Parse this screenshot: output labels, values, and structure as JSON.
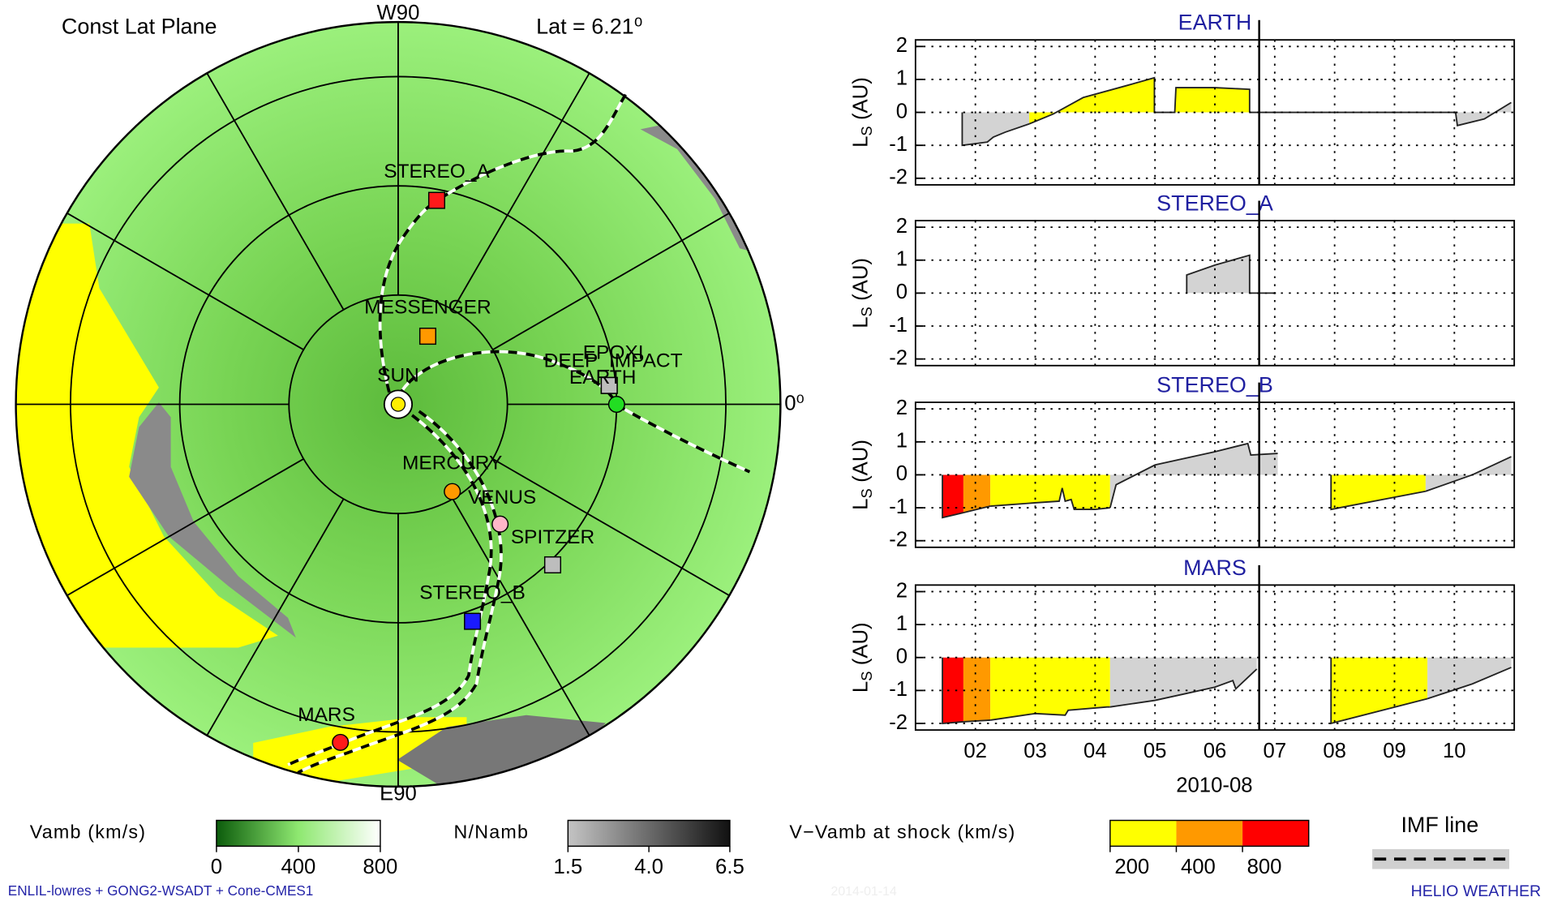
{
  "chart_data": [
    {
      "type": "polar",
      "title": "Const Lat Plane",
      "annotation": "Lat = 6.21⁰",
      "rlim": [
        0,
        1.75
      ],
      "rticks": [
        0.5,
        1,
        1.5
      ],
      "spokes": [
        0,
        30,
        60,
        90,
        120,
        150,
        180,
        210,
        240,
        270,
        300,
        330
      ],
      "angle_labels": [
        {
          "value": 90,
          "label": "W90"
        },
        {
          "value": 0,
          "label": "0⁰"
        },
        {
          "value": -90,
          "label": "E90"
        }
      ],
      "objects": [
        {
          "name": "SUN",
          "r": 0,
          "angle": 0,
          "shape": "sun",
          "color": "#ffee00"
        },
        {
          "name": "STEREO_A",
          "r": 0.95,
          "angle": 79.3,
          "shape": "square",
          "color": "#ff1a1a"
        },
        {
          "name": "MESSENGER",
          "r": 0.34,
          "angle": 66.5,
          "shape": "square",
          "color": "#ff9900"
        },
        {
          "name": "EPOXI",
          "r": 0.97,
          "angle": 5.1,
          "shape": "square",
          "color": "#bdbdbd"
        },
        {
          "name": "DEEP_IMPACT",
          "r": 0.97,
          "angle": 5.1,
          "shape": "square",
          "color": "#bdbdbd"
        },
        {
          "name": "EARTH",
          "r": 1.0,
          "angle": 0,
          "shape": "circle",
          "color": "#22dd22"
        },
        {
          "name": "MERCURY",
          "r": 0.47,
          "angle": -58.2,
          "shape": "circle",
          "color": "#ff9900"
        },
        {
          "name": "VENUS",
          "r": 0.72,
          "angle": -49.6,
          "shape": "circle",
          "color": "#ffb6c8"
        },
        {
          "name": "SPITZER",
          "r": 1.02,
          "angle": -46.1,
          "shape": "square",
          "color": "#bdbdbd"
        },
        {
          "name": "STEREO_B",
          "r": 1.05,
          "angle": -71.1,
          "shape": "square",
          "color": "#1a1aff"
        },
        {
          "name": "MARS",
          "r": 1.57,
          "angle": -99.7,
          "shape": "circle",
          "color": "#ff1a1a"
        }
      ]
    },
    {
      "type": "area",
      "xlabel": "2010-08",
      "ylabel": "L",
      "ylabel_sub": "S",
      "ylabel_unit": "(AU)",
      "xlim": [
        1,
        11
      ],
      "ylim": [
        -2.2,
        2.2
      ],
      "current_time": 6.74,
      "grid": true,
      "xticks": [
        {
          "value": 2,
          "label": "02"
        },
        {
          "value": 3,
          "label": "03"
        },
        {
          "value": 4,
          "label": "04"
        },
        {
          "value": 5,
          "label": "05"
        },
        {
          "value": 6,
          "label": "06"
        },
        {
          "value": 7,
          "label": "07"
        },
        {
          "value": 8,
          "label": "08"
        },
        {
          "value": 9,
          "label": "09"
        },
        10
      ],
      "yticks": [
        -2,
        -1,
        0,
        1,
        2
      ],
      "panels": [
        {
          "title": "EARTH",
          "segments": [
            {
              "color": "#d3d3d3",
              "x": [
                1.78,
                1.78,
                2.0,
                2.2,
                2.3,
                2.5,
                2.9
              ],
              "values": [
                0,
                -1.0,
                -0.95,
                -0.9,
                -0.75,
                -0.6,
                -0.35
              ]
            },
            {
              "color": "#ffff00",
              "x": [
                2.9,
                3.3,
                3.8,
                4.5,
                4.99,
                4.99,
                5.33,
                5.35,
                6.0,
                6.58,
                6.58
              ],
              "values": [
                -0.35,
                -0.05,
                0.45,
                0.8,
                1.05,
                0,
                0,
                0.75,
                0.75,
                0.7,
                0
              ]
            },
            {
              "color": "#d3d3d3",
              "x": [
                6.58,
                10.02,
                10.05,
                10.5,
                10.95
              ],
              "values": [
                0,
                0,
                -0.4,
                -0.2,
                0.3
              ]
            }
          ]
        },
        {
          "title": "STEREO_A",
          "segments": [
            {
              "color": "#d3d3d3",
              "x": [
                5.53,
                5.53,
                6.0,
                6.58,
                6.58,
                7.02
              ],
              "values": [
                0,
                0.55,
                0.85,
                1.15,
                0,
                0
              ]
            }
          ]
        },
        {
          "title": "STEREO_B",
          "segments": [
            {
              "color": "#ff0000",
              "x": [
                1.45,
                1.45,
                1.8
              ],
              "values": [
                0,
                -1.3,
                -1.15
              ]
            },
            {
              "color": "#ff9900",
              "x": [
                1.8,
                2.25
              ],
              "values": [
                -1.15,
                -0.95
              ]
            },
            {
              "color": "#ffff00",
              "x": [
                2.25,
                3.0,
                3.4,
                3.45,
                3.5,
                3.6,
                3.65,
                4.0,
                4.25
              ],
              "values": [
                -0.95,
                -0.85,
                -0.8,
                -0.4,
                -0.8,
                -0.75,
                -1.05,
                -1.05,
                -1.0
              ]
            },
            {
              "color": "#d3d3d3",
              "x": [
                4.25,
                4.35,
                5.0,
                6.0,
                6.55,
                6.6,
                7.05
              ],
              "values": [
                -1.0,
                -0.3,
                0.3,
                0.7,
                0.95,
                0.6,
                0.65
              ]
            },
            {
              "color": "#ffff00",
              "x": [
                7.94,
                7.94,
                9.52
              ],
              "values": [
                0,
                -1.05,
                -0.5
              ]
            },
            {
              "color": "#d3d3d3",
              "x": [
                9.52,
                10.3,
                10.95
              ],
              "values": [
                -0.5,
                0,
                0.55
              ]
            }
          ]
        },
        {
          "title": "MARS",
          "segments": [
            {
              "color": "#ff0000",
              "x": [
                1.45,
                1.45,
                1.8
              ],
              "values": [
                0,
                -2.0,
                -1.95
              ]
            },
            {
              "color": "#ff9900",
              "x": [
                1.8,
                2.25
              ],
              "values": [
                -1.95,
                -1.9
              ]
            },
            {
              "color": "#ffff00",
              "x": [
                2.25,
                3.0,
                3.5,
                3.55,
                4.2,
                4.25
              ],
              "values": [
                -1.9,
                -1.7,
                -1.75,
                -1.6,
                -1.5,
                -1.5
              ]
            },
            {
              "color": "#d3d3d3",
              "x": [
                4.25,
                5.0,
                5.5,
                6.0,
                6.3,
                6.35,
                6.7
              ],
              "values": [
                -1.5,
                -1.3,
                -1.1,
                -0.9,
                -0.7,
                -0.95,
                -0.35
              ]
            },
            {
              "color": "#ffff00",
              "x": [
                7.94,
                7.94,
                9.55
              ],
              "values": [
                0,
                -2.0,
                -1.25
              ]
            },
            {
              "color": "#d3d3d3",
              "x": [
                9.55,
                10.3,
                10.95
              ],
              "values": [
                -1.25,
                -0.8,
                -0.3
              ]
            }
          ]
        }
      ]
    }
  ],
  "legends": [
    {
      "label": "Vamb (km/s)",
      "colors": [
        "#0c5c0c",
        "#8ee870",
        "#ffffff"
      ],
      "range": [
        0,
        800
      ],
      "ticks": [
        0,
        400,
        800
      ]
    },
    {
      "label": "N/Namb",
      "colors": [
        "#c4c4c4",
        "#111111"
      ],
      "range": [
        1.5,
        6.5
      ],
      "ticks": [
        1.5,
        {
          "value": 4,
          "label": "4.0"
        },
        6.5
      ]
    },
    {
      "label": "V−Vamb at shock (km/s)",
      "colors": [
        "#ffff00",
        "#ff9900",
        "#ff0000"
      ],
      "ticks": [
        200,
        400,
        800
      ]
    },
    {
      "label": "IMF line"
    }
  ],
  "footer": {
    "left": "ENLIL-lowres + GONG2-WSADT + Cone-CMES1",
    "center": "2014-01-14",
    "right": "HELIO WEATHER"
  }
}
